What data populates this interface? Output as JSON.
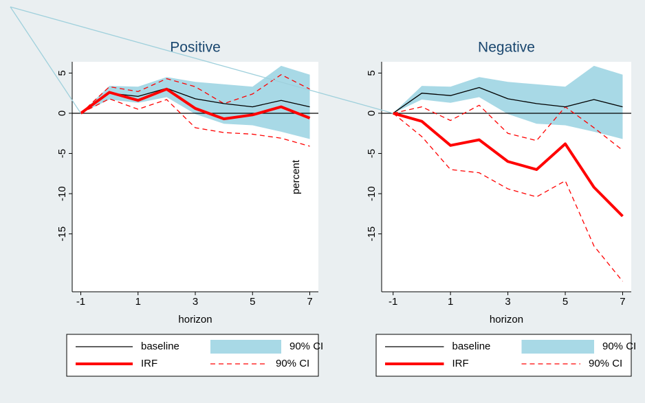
{
  "chart_data": [
    {
      "type": "line",
      "title": "Positive",
      "x_label": "horizon",
      "y_label": "percent",
      "x": [
        -1,
        0,
        1,
        2,
        3,
        4,
        5,
        6,
        7
      ],
      "xlim": [
        -1.3,
        7.3
      ],
      "xticks": [
        -1,
        1,
        3,
        5,
        7
      ],
      "ylim": [
        -22.2,
        6.4
      ],
      "yticks": [
        -15,
        -10,
        -5,
        0,
        5
      ],
      "reference_line": 0,
      "series": [
        {
          "name": "baseline",
          "color": "#000000",
          "values": [
            0,
            2.5,
            2.1,
            3.1,
            1.8,
            1.2,
            0.8,
            1.6,
            0.8
          ]
        },
        {
          "name": "IRF",
          "color": "#ff0000",
          "values": [
            0,
            2.6,
            1.6,
            3.0,
            0.6,
            -0.7,
            -0.2,
            0.8,
            -0.6
          ]
        }
      ],
      "bands": [
        {
          "name": "90% CI",
          "color": "#a8d9e6",
          "style": "area",
          "upper": [
            0,
            3.4,
            3.3,
            4.5,
            3.9,
            3.6,
            3.3,
            5.9,
            4.8
          ],
          "lower": [
            0,
            1.7,
            1.3,
            2.0,
            -0.1,
            -1.3,
            -1.5,
            -2.3,
            -3.2
          ]
        },
        {
          "name": "90% CI",
          "color": "#ff0000",
          "style": "dashed",
          "upper": [
            0,
            3.3,
            2.7,
            4.3,
            3.3,
            1.2,
            2.4,
            4.8,
            3.0
          ],
          "lower": [
            0,
            1.8,
            0.5,
            1.7,
            -1.8,
            -2.4,
            -2.6,
            -3.1,
            -4.1
          ]
        }
      ]
    },
    {
      "type": "line",
      "title": "Negative",
      "x_label": "horizon",
      "x": [
        -1,
        0,
        1,
        2,
        3,
        4,
        5,
        6,
        7
      ],
      "xlim": [
        -1.4,
        7.3
      ],
      "xticks": [
        -1,
        1,
        3,
        5,
        7
      ],
      "ylim": [
        -22.2,
        6.4
      ],
      "yticks": [
        -15,
        -10,
        -5,
        0,
        5
      ],
      "reference_line": 0,
      "series": [
        {
          "name": "baseline",
          "color": "#000000",
          "values": [
            0,
            2.5,
            2.2,
            3.2,
            1.8,
            1.2,
            0.8,
            1.7,
            0.8
          ]
        },
        {
          "name": "IRF",
          "color": "#ff0000",
          "values": [
            0,
            -1.0,
            -4.0,
            -3.3,
            -6.0,
            -7.0,
            -3.8,
            -9.2,
            -12.8
          ]
        }
      ],
      "bands": [
        {
          "name": "90% CI",
          "color": "#a8d9e6",
          "style": "area",
          "upper": [
            0,
            3.4,
            3.3,
            4.5,
            3.9,
            3.6,
            3.3,
            5.9,
            4.8
          ],
          "lower": [
            0,
            1.7,
            1.3,
            2.0,
            -0.1,
            -1.3,
            -1.5,
            -2.3,
            -3.2
          ]
        },
        {
          "name": "90% CI",
          "color": "#ff0000",
          "style": "dashed",
          "upper": [
            0,
            0.8,
            -0.9,
            1.0,
            -2.5,
            -3.4,
            0.8,
            -1.8,
            -4.6
          ],
          "lower": [
            0,
            -2.9,
            -7.0,
            -7.4,
            -9.4,
            -10.4,
            -8.4,
            -16.5,
            -20.9
          ]
        }
      ]
    }
  ]
}
